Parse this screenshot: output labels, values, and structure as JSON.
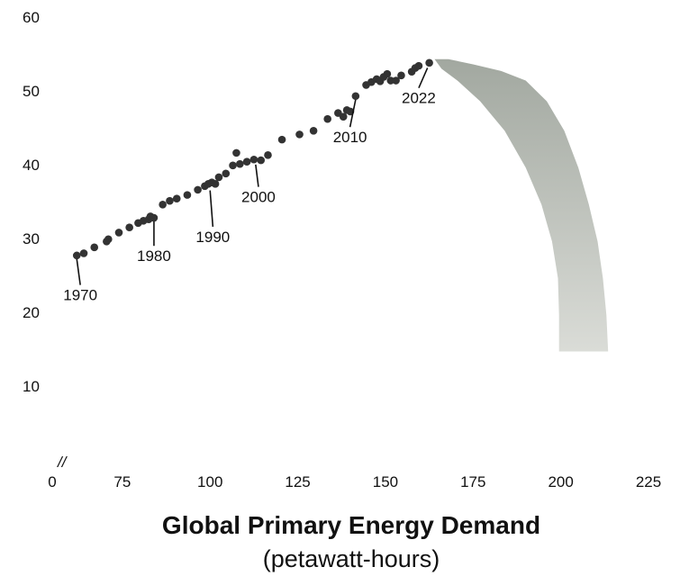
{
  "chart_data": {
    "type": "scatter",
    "title": "",
    "xlabel": "Global Primary Energy Demand",
    "xlabel_sub": "(petawatt-hours)",
    "ylabel": "",
    "xlim": [
      55,
      225
    ],
    "ylim": [
      0,
      60
    ],
    "x_axis_break": "//",
    "x_ticks": [
      "0",
      "75",
      "100",
      "125",
      "150",
      "175",
      "200",
      "225"
    ],
    "y_ticks": [
      "10",
      "20",
      "30",
      "40",
      "50",
      "60"
    ],
    "grid": false,
    "legend": "none",
    "point_color": "#333333",
    "projection_color": "#a9aea6",
    "series": [
      {
        "values": [
          {
            "x": 62.0,
            "y": 27.7
          },
          {
            "x": 64.0,
            "y": 28.0
          },
          {
            "x": 67.0,
            "y": 28.8
          },
          {
            "x": 70.5,
            "y": 29.6
          },
          {
            "x": 71.0,
            "y": 29.9
          },
          {
            "x": 74.0,
            "y": 30.8
          },
          {
            "x": 77.0,
            "y": 31.5
          },
          {
            "x": 79.5,
            "y": 32.1
          },
          {
            "x": 81.0,
            "y": 32.4
          },
          {
            "x": 82.5,
            "y": 32.6
          },
          {
            "x": 83.0,
            "y": 33.0
          },
          {
            "x": 84.0,
            "y": 32.8
          },
          {
            "x": 86.5,
            "y": 34.6
          },
          {
            "x": 88.5,
            "y": 35.1
          },
          {
            "x": 90.5,
            "y": 35.4
          },
          {
            "x": 93.5,
            "y": 35.9
          },
          {
            "x": 96.5,
            "y": 36.6
          },
          {
            "x": 98.5,
            "y": 37.1
          },
          {
            "x": 99.5,
            "y": 37.4
          },
          {
            "x": 100.5,
            "y": 37.6
          },
          {
            "x": 101.5,
            "y": 37.4
          },
          {
            "x": 102.5,
            "y": 38.3
          },
          {
            "x": 104.5,
            "y": 38.8
          },
          {
            "x": 106.5,
            "y": 39.9
          },
          {
            "x": 107.5,
            "y": 41.6
          },
          {
            "x": 108.5,
            "y": 40.1
          },
          {
            "x": 110.5,
            "y": 40.4
          },
          {
            "x": 112.5,
            "y": 40.7
          },
          {
            "x": 114.5,
            "y": 40.6
          },
          {
            "x": 116.5,
            "y": 41.3
          },
          {
            "x": 120.5,
            "y": 43.4
          },
          {
            "x": 125.5,
            "y": 44.1
          },
          {
            "x": 129.5,
            "y": 44.6
          },
          {
            "x": 133.5,
            "y": 46.2
          },
          {
            "x": 136.5,
            "y": 47.0
          },
          {
            "x": 138.0,
            "y": 46.5
          },
          {
            "x": 139.0,
            "y": 47.4
          },
          {
            "x": 140.0,
            "y": 47.2
          },
          {
            "x": 141.5,
            "y": 49.3
          },
          {
            "x": 144.5,
            "y": 50.8
          },
          {
            "x": 146.0,
            "y": 51.2
          },
          {
            "x": 147.5,
            "y": 51.6
          },
          {
            "x": 148.5,
            "y": 51.3
          },
          {
            "x": 149.5,
            "y": 51.9
          },
          {
            "x": 150.5,
            "y": 52.3
          },
          {
            "x": 151.5,
            "y": 51.4
          },
          {
            "x": 153.0,
            "y": 51.4
          },
          {
            "x": 154.5,
            "y": 52.1
          },
          {
            "x": 157.5,
            "y": 52.6
          },
          {
            "x": 158.5,
            "y": 53.1
          },
          {
            "x": 159.5,
            "y": 53.4
          },
          {
            "x": 162.5,
            "y": 53.8
          }
        ]
      }
    ],
    "annotations": [
      {
        "label": "1970",
        "x": 62.0,
        "y": 27.7,
        "dx": 1.0,
        "dy": -4.0
      },
      {
        "label": "1980",
        "x": 84.0,
        "y": 32.8,
        "dx": 0.0,
        "dy": -3.8
      },
      {
        "label": "1990",
        "x": 100.0,
        "y": 37.0,
        "dx": 0.8,
        "dy": -5.4
      },
      {
        "label": "2000",
        "x": 113.0,
        "y": 40.5,
        "dx": 0.8,
        "dy": -3.5
      },
      {
        "label": "2010",
        "x": 141.5,
        "y": 49.3,
        "dx": -1.6,
        "dy": -4.2
      },
      {
        "label": "2022",
        "x": 162.0,
        "y": 53.6,
        "dx": -2.5,
        "dy": -3.2
      }
    ],
    "projection_band": {
      "upper": [
        [
          164.0,
          54.3
        ],
        [
          168.0,
          54.3
        ],
        [
          175.0,
          53.6
        ],
        [
          183.0,
          52.7
        ],
        [
          190.0,
          51.4
        ],
        [
          196.0,
          48.6
        ],
        [
          201.0,
          44.6
        ],
        [
          205.0,
          39.6
        ],
        [
          208.0,
          34.6
        ],
        [
          210.5,
          29.6
        ],
        [
          212.0,
          24.6
        ],
        [
          213.0,
          19.6
        ],
        [
          213.5,
          14.7
        ]
      ],
      "lower": [
        [
          199.5,
          14.7
        ],
        [
          199.5,
          19.6
        ],
        [
          199.2,
          24.6
        ],
        [
          197.5,
          29.6
        ],
        [
          194.5,
          34.6
        ],
        [
          190.0,
          39.6
        ],
        [
          184.0,
          44.6
        ],
        [
          177.0,
          48.6
        ],
        [
          170.5,
          51.4
        ],
        [
          166.0,
          53.0
        ]
      ]
    }
  }
}
